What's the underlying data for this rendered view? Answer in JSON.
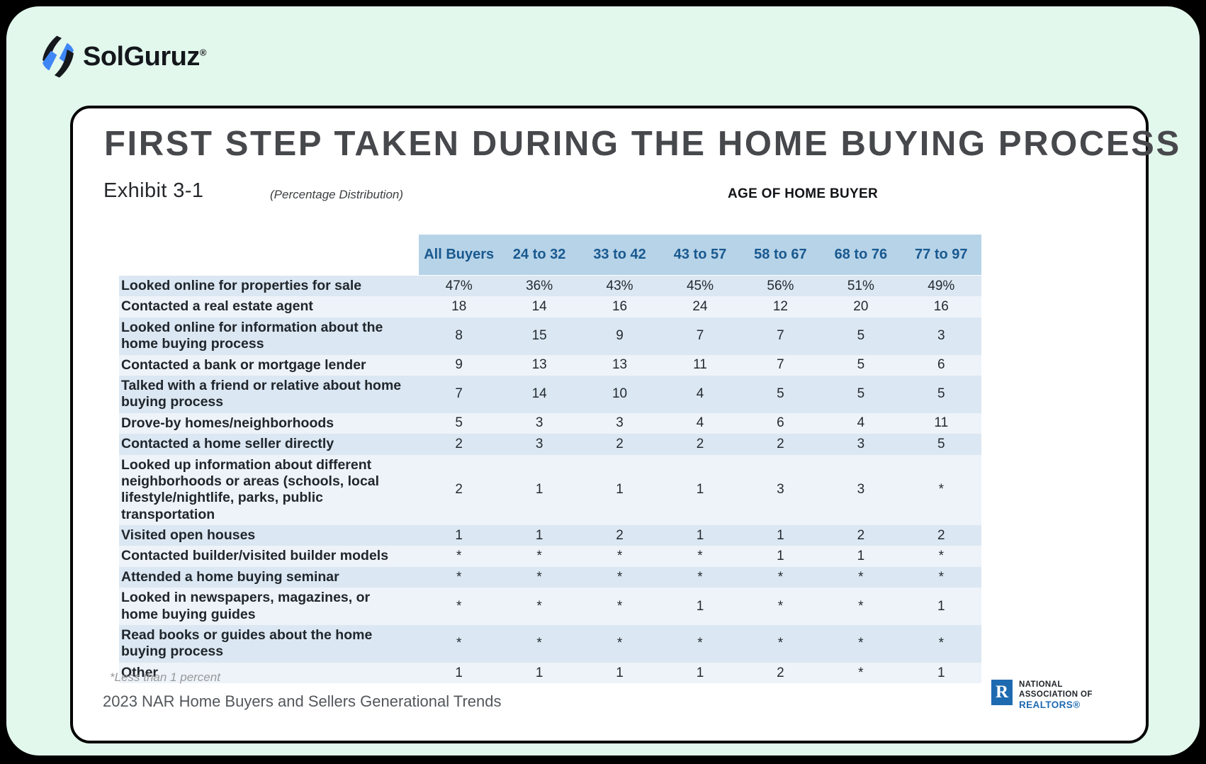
{
  "brand": {
    "name": "SolGuruz",
    "reg_mark": "®"
  },
  "exhibit": {
    "title": "FIRST STEP TAKEN DURING THE HOME BUYING PROCESS",
    "label": "Exhibit 3-1",
    "subtitle": "(Percentage Distribution)",
    "column_group_header": "AGE OF HOME BUYER",
    "footnote": "*Less than 1 percent",
    "source": "2023 NAR Home Buyers and Sellers Generational Trends"
  },
  "nar_logo": {
    "monogram": "R",
    "line1": "NATIONAL",
    "line2": "ASSOCIATION OF",
    "line3": "REALTORS®"
  },
  "chart_data": {
    "type": "table",
    "title": "FIRST STEP TAKEN DURING THE HOME BUYING PROCESS",
    "column_group_header": "AGE OF HOME BUYER",
    "columns": [
      "All Buyers",
      "24 to 32",
      "33 to 42",
      "43 to 57",
      "58 to 67",
      "68 to 76",
      "77 to 97"
    ],
    "rows": [
      {
        "label": "Looked online for properties for sale",
        "values": [
          "47%",
          "36%",
          "43%",
          "45%",
          "56%",
          "51%",
          "49%"
        ]
      },
      {
        "label": "Contacted a real estate agent",
        "values": [
          "18",
          "14",
          "16",
          "24",
          "12",
          "20",
          "16"
        ]
      },
      {
        "label": "Looked online for information about the home buying process",
        "values": [
          "8",
          "15",
          "9",
          "7",
          "7",
          "5",
          "3"
        ]
      },
      {
        "label": "Contacted a bank or mortgage lender",
        "values": [
          "9",
          "13",
          "13",
          "11",
          "7",
          "5",
          "6"
        ]
      },
      {
        "label": "Talked with a friend or relative about home buying process",
        "values": [
          "7",
          "14",
          "10",
          "4",
          "5",
          "5",
          "5"
        ]
      },
      {
        "label": "Drove-by homes/neighborhoods",
        "values": [
          "5",
          "3",
          "3",
          "4",
          "6",
          "4",
          "11"
        ]
      },
      {
        "label": "Contacted a home seller directly",
        "values": [
          "2",
          "3",
          "2",
          "2",
          "2",
          "3",
          "5"
        ]
      },
      {
        "label": "Looked up information about different neighborhoods or areas (schools, local lifestyle/nightlife, parks, public transportation",
        "values": [
          "2",
          "1",
          "1",
          "1",
          "3",
          "3",
          "*"
        ]
      },
      {
        "label": "Visited open houses",
        "values": [
          "1",
          "1",
          "2",
          "1",
          "1",
          "2",
          "2"
        ]
      },
      {
        "label": "Contacted builder/visited builder models",
        "values": [
          "*",
          "*",
          "*",
          "*",
          "1",
          "1",
          "*"
        ]
      },
      {
        "label": "Attended a home buying seminar",
        "values": [
          "*",
          "*",
          "*",
          "*",
          "*",
          "*",
          "*"
        ]
      },
      {
        "label": "Looked in newspapers, magazines, or home buying guides",
        "values": [
          "*",
          "*",
          "*",
          "1",
          "*",
          "*",
          "1"
        ]
      },
      {
        "label": "Read books or guides about the home buying process",
        "values": [
          "*",
          "*",
          "*",
          "*",
          "*",
          "*",
          "*"
        ]
      },
      {
        "label": "Other",
        "values": [
          "1",
          "1",
          "1",
          "1",
          "2",
          "*",
          "1"
        ]
      }
    ],
    "footnote": "*Less than 1 percent",
    "source": "2023 NAR Home Buyers and Sellers Generational Trends"
  },
  "colors": {
    "mint_bg": "#e3f8ed",
    "header_band": "#b7d3e8",
    "header_text": "#19598f",
    "stripe_a": "#dbe7f2",
    "stripe_b": "#eef3f9",
    "nar_blue": "#1e6ab0",
    "logo_blue": "#3f87f6",
    "logo_black": "#15181c"
  }
}
